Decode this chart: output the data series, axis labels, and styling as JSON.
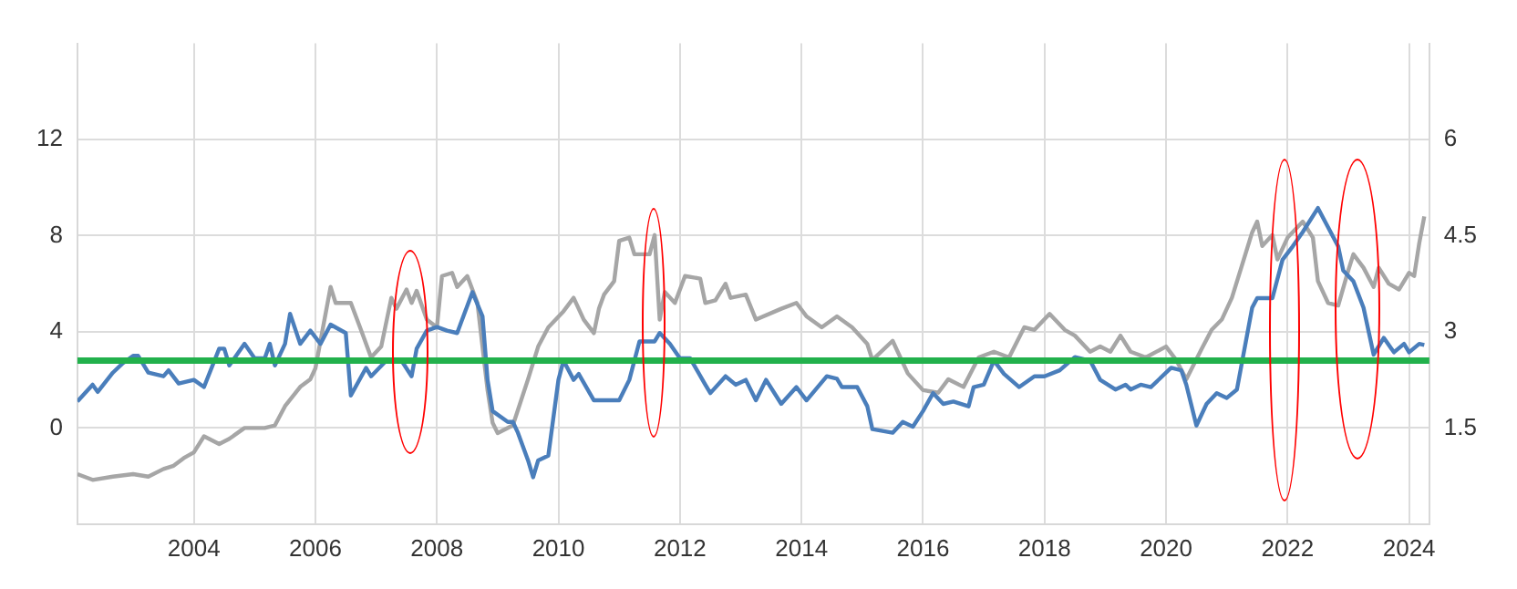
{
  "chart_data": {
    "type": "line",
    "xlim": [
      "2002-02",
      "2024-05"
    ],
    "xticks": [
      "2004",
      "2006",
      "2008",
      "2010",
      "2012",
      "2014",
      "2016",
      "2018",
      "2020",
      "2022",
      "2024"
    ],
    "ylim": [
      -4,
      16
    ],
    "yticks": [
      0,
      4,
      8,
      12
    ],
    "y2lim": [
      0,
      7.5
    ],
    "y2ticks": [
      1.5,
      3,
      4.5,
      6
    ],
    "grid": true,
    "legend": false,
    "marker": "none",
    "line_style": "solid",
    "ref_lines": [
      {
        "axis": "y",
        "value": 2.8,
        "color": "#22b14c"
      }
    ],
    "series": [
      {
        "color": "#4a7ebb",
        "x": [
          "2002-02",
          "2002-05",
          "2002-06",
          "2002-09",
          "2002-11",
          "2003-01",
          "2003-02",
          "2003-04",
          "2003-07",
          "2003-08",
          "2003-10",
          "2004-01",
          "2004-03",
          "2004-06",
          "2004-07",
          "2004-08",
          "2004-11",
          "2005-01",
          "2005-03",
          "2005-04",
          "2005-05",
          "2005-07",
          "2005-08",
          "2005-10",
          "2005-12",
          "2006-02",
          "2006-04",
          "2006-07",
          "2006-08",
          "2006-11",
          "2006-12",
          "2007-03",
          "2007-06",
          "2007-08",
          "2007-09",
          "2007-11",
          "2008-01",
          "2008-03",
          "2008-05",
          "2008-08",
          "2008-10",
          "2008-11",
          "2008-12",
          "2009-03",
          "2009-04",
          "2009-05",
          "2009-07",
          "2009-08",
          "2009-09",
          "2009-11",
          "2010-01",
          "2010-02",
          "2010-04",
          "2010-05",
          "2010-08",
          "2011-01",
          "2011-03",
          "2011-05",
          "2011-08",
          "2011-09",
          "2011-11",
          "2012-01",
          "2012-03",
          "2012-06",
          "2012-07",
          "2012-10",
          "2012-12",
          "2013-02",
          "2013-04",
          "2013-06",
          "2013-09",
          "2013-12",
          "2014-02",
          "2014-06",
          "2014-08",
          "2014-09",
          "2014-12",
          "2015-02",
          "2015-03",
          "2015-07",
          "2015-09",
          "2015-11",
          "2016-01",
          "2016-03",
          "2016-05",
          "2016-07",
          "2016-10",
          "2016-11",
          "2017-01",
          "2017-03",
          "2017-05",
          "2017-08",
          "2017-11",
          "2018-01",
          "2018-04",
          "2018-07",
          "2018-10",
          "2018-12",
          "2019-03",
          "2019-05",
          "2019-06",
          "2019-08",
          "2019-10",
          "2020-02",
          "2020-04",
          "2020-05",
          "2020-07",
          "2020-09",
          "2020-11",
          "2021-01",
          "2021-03",
          "2021-06",
          "2021-07",
          "2021-10",
          "2021-12",
          "2022-02",
          "2022-04",
          "2022-07",
          "2022-09",
          "2022-11",
          "2022-12",
          "2023-02",
          "2023-04",
          "2023-06",
          "2023-08",
          "2023-10",
          "2023-12",
          "2024-01",
          "2024-03",
          "2024-04"
        ],
        "values": [
          1.1,
          1.8,
          1.5,
          2.3,
          2.7,
          3.0,
          3.0,
          2.3,
          2.15,
          2.4,
          1.85,
          2.0,
          1.7,
          3.3,
          3.3,
          2.6,
          3.5,
          2.9,
          2.9,
          3.5,
          2.6,
          3.5,
          4.75,
          3.5,
          4.05,
          3.5,
          4.3,
          3.95,
          1.35,
          2.5,
          2.15,
          2.8,
          2.8,
          2.15,
          3.3,
          4.05,
          4.2,
          4.05,
          3.95,
          5.65,
          4.65,
          2.0,
          0.7,
          0.25,
          0.25,
          -0.2,
          -1.35,
          -2.05,
          -1.35,
          -1.15,
          2.0,
          2.8,
          2.0,
          2.25,
          1.15,
          1.15,
          2.0,
          3.6,
          3.6,
          3.95,
          3.5,
          2.9,
          2.9,
          1.8,
          1.45,
          2.15,
          1.8,
          2.0,
          1.15,
          2.0,
          1.0,
          1.7,
          1.15,
          2.15,
          2.05,
          1.7,
          1.7,
          0.9,
          -0.05,
          -0.2,
          0.25,
          0.05,
          0.7,
          1.45,
          1.0,
          1.1,
          0.9,
          1.7,
          1.8,
          2.8,
          2.25,
          1.7,
          2.15,
          2.15,
          2.4,
          2.95,
          2.8,
          2.0,
          1.6,
          1.8,
          1.6,
          1.8,
          1.7,
          2.5,
          2.4,
          1.8,
          0.1,
          1.0,
          1.45,
          1.25,
          1.6,
          5.0,
          5.4,
          5.4,
          7.0,
          7.55,
          8.15,
          9.15,
          8.35,
          7.55,
          6.55,
          6.1,
          5.0,
          3.05,
          3.75,
          3.15,
          3.5,
          3.15,
          3.5,
          3.45
        ]
      },
      {
        "color": "#a6a6a6",
        "axis": "y2",
        "x": [
          "2002-02",
          "2002-05",
          "2002-09",
          "2003-01",
          "2003-04",
          "2003-07",
          "2003-09",
          "2003-11",
          "2004-01",
          "2004-03",
          "2004-06",
          "2004-08",
          "2004-11",
          "2005-03",
          "2005-05",
          "2005-07",
          "2005-10",
          "2005-12",
          "2006-01",
          "2006-04",
          "2006-05",
          "2006-08",
          "2006-10",
          "2006-12",
          "2007-02",
          "2007-04",
          "2007-05",
          "2007-07",
          "2007-08",
          "2007-09",
          "2007-11",
          "2008-01",
          "2008-02",
          "2008-04",
          "2008-05",
          "2008-07",
          "2008-09",
          "2008-11",
          "2008-12",
          "2009-01",
          "2009-04",
          "2009-07",
          "2009-09",
          "2009-11",
          "2010-02",
          "2010-04",
          "2010-06",
          "2010-08",
          "2010-09",
          "2010-10",
          "2010-12",
          "2011-01",
          "2011-03",
          "2011-04",
          "2011-07",
          "2011-08",
          "2011-09",
          "2011-10",
          "2011-12",
          "2012-02",
          "2012-05",
          "2012-06",
          "2012-08",
          "2012-10",
          "2012-11",
          "2013-02",
          "2013-04",
          "2013-09",
          "2013-12",
          "2014-02",
          "2014-05",
          "2014-08",
          "2014-11",
          "2015-02",
          "2015-03",
          "2015-07",
          "2015-10",
          "2016-01",
          "2016-04",
          "2016-06",
          "2016-09",
          "2016-12",
          "2017-03",
          "2017-06",
          "2017-09",
          "2017-11",
          "2018-02",
          "2018-05",
          "2018-07",
          "2018-10",
          "2018-12",
          "2019-02",
          "2019-04",
          "2019-06",
          "2019-09",
          "2020-01",
          "2020-03",
          "2020-05",
          "2020-08",
          "2020-10",
          "2020-12",
          "2021-02",
          "2021-04",
          "2021-06",
          "2021-07",
          "2021-08",
          "2021-10",
          "2021-11",
          "2022-01",
          "2022-04",
          "2022-06",
          "2022-07",
          "2022-09",
          "2022-11",
          "2023-01",
          "2023-02",
          "2023-04",
          "2023-06",
          "2023-07",
          "2023-09",
          "2023-11",
          "2024-01",
          "2024-02",
          "2024-03",
          "2024-04"
        ],
        "values": [
          0.78,
          0.69,
          0.74,
          0.78,
          0.74,
          0.86,
          0.91,
          1.03,
          1.12,
          1.37,
          1.25,
          1.33,
          1.5,
          1.5,
          1.54,
          1.84,
          2.14,
          2.26,
          2.43,
          3.7,
          3.45,
          3.45,
          3.03,
          2.6,
          2.77,
          3.53,
          3.36,
          3.66,
          3.45,
          3.64,
          3.19,
          3.07,
          3.87,
          3.92,
          3.7,
          3.87,
          3.45,
          2.09,
          1.58,
          1.42,
          1.54,
          2.26,
          2.77,
          3.07,
          3.32,
          3.53,
          3.19,
          2.98,
          3.36,
          3.58,
          3.79,
          4.42,
          4.47,
          4.21,
          4.21,
          4.51,
          3.19,
          3.62,
          3.45,
          3.87,
          3.83,
          3.45,
          3.49,
          3.75,
          3.53,
          3.58,
          3.19,
          3.36,
          3.45,
          3.24,
          3.07,
          3.24,
          3.07,
          2.81,
          2.56,
          2.86,
          2.35,
          2.09,
          2.05,
          2.26,
          2.14,
          2.6,
          2.69,
          2.6,
          3.07,
          3.03,
          3.28,
          3.03,
          2.94,
          2.69,
          2.77,
          2.69,
          2.94,
          2.69,
          2.6,
          2.77,
          2.56,
          2.26,
          2.73,
          3.03,
          3.19,
          3.53,
          4.04,
          4.55,
          4.72,
          4.34,
          4.51,
          4.13,
          4.47,
          4.72,
          4.47,
          3.79,
          3.45,
          3.41,
          3.96,
          4.21,
          4.0,
          3.7,
          4.0,
          3.75,
          3.66,
          3.92,
          3.87,
          4.38,
          4.8
        ]
      }
    ]
  }
}
